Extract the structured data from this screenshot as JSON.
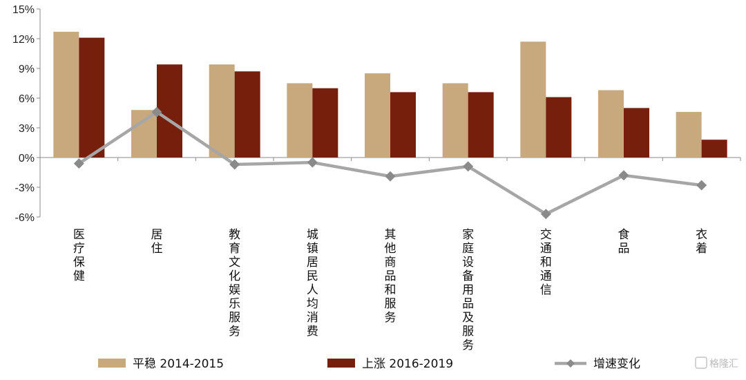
{
  "chart_data": {
    "type": "bar",
    "categories": [
      "医疗保健",
      "居住",
      "教育文化娱乐服务",
      "城镇居民人均消费",
      "其他商品和服务",
      "家庭设备用品及服务",
      "交通和通信",
      "食品",
      "衣着"
    ],
    "y_ticks": [
      "15%",
      "12%",
      "9%",
      "6%",
      "3%",
      "0%",
      "-3%",
      "-6%"
    ],
    "ylim": [
      -6,
      15
    ],
    "series": [
      {
        "name": "平稳 2014-2015",
        "kind": "bar",
        "color": "#c8a97e",
        "values": [
          12.7,
          4.8,
          9.4,
          7.5,
          8.5,
          7.5,
          11.7,
          6.8,
          4.6
        ]
      },
      {
        "name": "上涨 2016-2019",
        "kind": "bar",
        "color": "#761f0c",
        "values": [
          12.1,
          9.4,
          8.7,
          7.0,
          6.6,
          6.6,
          6.1,
          5.0,
          1.8
        ]
      },
      {
        "name": "增速变化",
        "kind": "line",
        "color": "#a6a6a6",
        "values": [
          -0.6,
          4.6,
          -0.7,
          -0.5,
          -1.9,
          -0.9,
          -5.7,
          -1.8,
          -2.8
        ]
      }
    ],
    "legend": "bottom"
  },
  "watermark": "格隆汇"
}
